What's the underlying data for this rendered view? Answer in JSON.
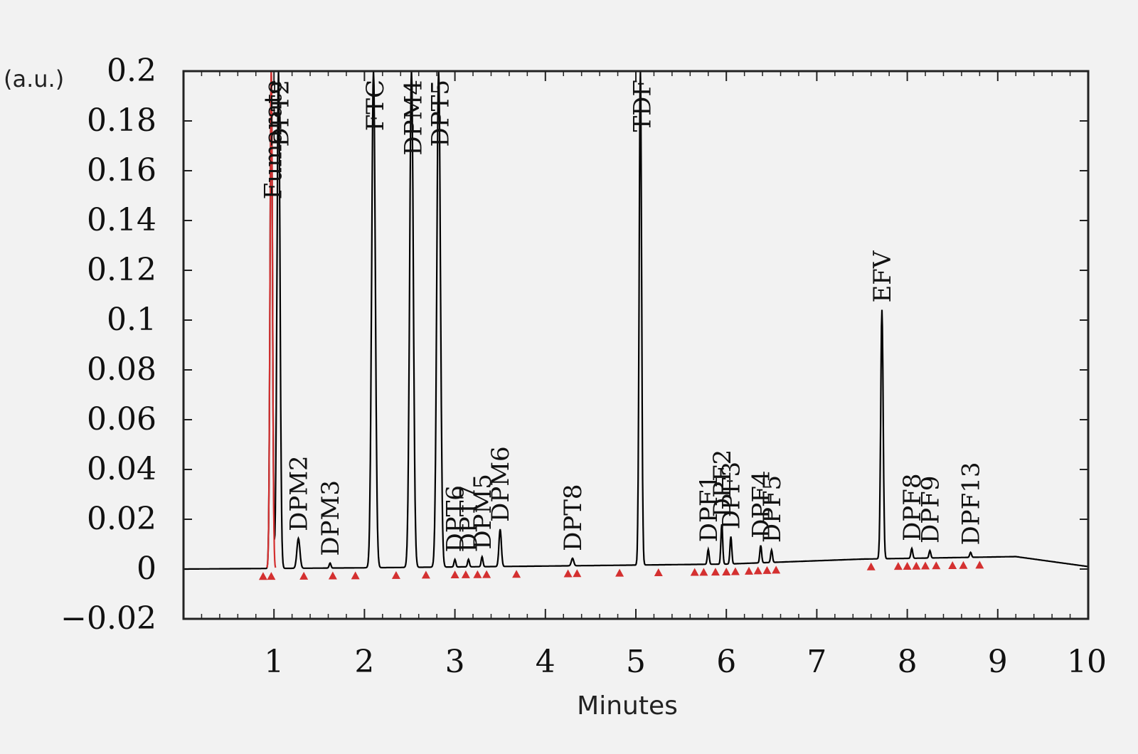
{
  "chart_data": {
    "type": "line",
    "title": "",
    "xlabel": "Minutes",
    "ylabel": "",
    "y_unit": "(a.u.)",
    "xlim": [
      0,
      10
    ],
    "ylim": [
      -0.02,
      0.2
    ],
    "grid": false,
    "x_ticks": [
      "1",
      "2",
      "3",
      "4",
      "5",
      "6",
      "7",
      "8",
      "9",
      "10"
    ],
    "y_ticks": [
      "0.2",
      "0.18",
      "0.16",
      "0.14",
      "0.12",
      "0.1",
      "0.08",
      "0.06",
      "0.04",
      "0.02",
      "0",
      "−0.02"
    ],
    "colors": {
      "trace": "#000000",
      "highlight": "#d43030",
      "markers": "#d43030"
    },
    "baseline": [
      [
        0,
        0.0
      ],
      [
        2,
        0.0005
      ],
      [
        4,
        0.0012
      ],
      [
        6,
        0.002
      ],
      [
        7.5,
        0.004
      ],
      [
        9.2,
        0.005
      ],
      [
        10,
        0.001
      ]
    ],
    "peaks": [
      {
        "label": "Fumarate",
        "rt": 0.97,
        "height": 0.2,
        "width": 0.04,
        "color": "#d43030"
      },
      {
        "label": "DPT2",
        "rt": 1.05,
        "height": 0.2,
        "width": 0.05
      },
      {
        "label": "DPM2",
        "rt": 1.27,
        "height": 0.012,
        "width": 0.05
      },
      {
        "label": "DPM3",
        "rt": 1.62,
        "height": 0.002,
        "width": 0.03
      },
      {
        "label": "FTC",
        "rt": 2.1,
        "height": 0.2,
        "width": 0.06
      },
      {
        "label": "DPM4",
        "rt": 2.52,
        "height": 0.2,
        "width": 0.06
      },
      {
        "label": "DPT5",
        "rt": 2.82,
        "height": 0.2,
        "width": 0.06
      },
      {
        "label": "DPT6",
        "rt": 3.0,
        "height": 0.003,
        "width": 0.03
      },
      {
        "label": "DPT7",
        "rt": 3.15,
        "height": 0.003,
        "width": 0.03
      },
      {
        "label": "DPM5",
        "rt": 3.3,
        "height": 0.004,
        "width": 0.03
      },
      {
        "label": "DPM6",
        "rt": 3.5,
        "height": 0.015,
        "width": 0.04
      },
      {
        "label": "DPT8",
        "rt": 4.3,
        "height": 0.003,
        "width": 0.04
      },
      {
        "label": "TDF",
        "rt": 5.05,
        "height": 0.2,
        "width": 0.04
      },
      {
        "label": "DPF1",
        "rt": 5.8,
        "height": 0.006,
        "width": 0.03
      },
      {
        "label": "DPF2",
        "rt": 5.95,
        "height": 0.016,
        "width": 0.03
      },
      {
        "label": "DPF3",
        "rt": 6.05,
        "height": 0.011,
        "width": 0.03
      },
      {
        "label": "DPF4",
        "rt": 6.38,
        "height": 0.007,
        "width": 0.03
      },
      {
        "label": "DPF5",
        "rt": 6.5,
        "height": 0.005,
        "width": 0.03
      },
      {
        "label": "EFV",
        "rt": 7.72,
        "height": 0.1,
        "width": 0.04
      },
      {
        "label": "DPF8",
        "rt": 8.05,
        "height": 0.004,
        "width": 0.03
      },
      {
        "label": "DPF9",
        "rt": 8.25,
        "height": 0.003,
        "width": 0.03
      },
      {
        "label": "DPF13",
        "rt": 8.7,
        "height": 0.002,
        "width": 0.03
      }
    ],
    "integration_markers": [
      0.88,
      0.97,
      1.33,
      1.65,
      1.9,
      2.35,
      2.68,
      3.0,
      3.12,
      3.25,
      3.35,
      3.68,
      4.25,
      4.35,
      4.82,
      5.25,
      5.65,
      5.75,
      5.88,
      6.0,
      6.1,
      6.25,
      6.35,
      6.45,
      6.55,
      7.6,
      7.9,
      8.0,
      8.1,
      8.2,
      8.32,
      8.5,
      8.62,
      8.8
    ]
  }
}
